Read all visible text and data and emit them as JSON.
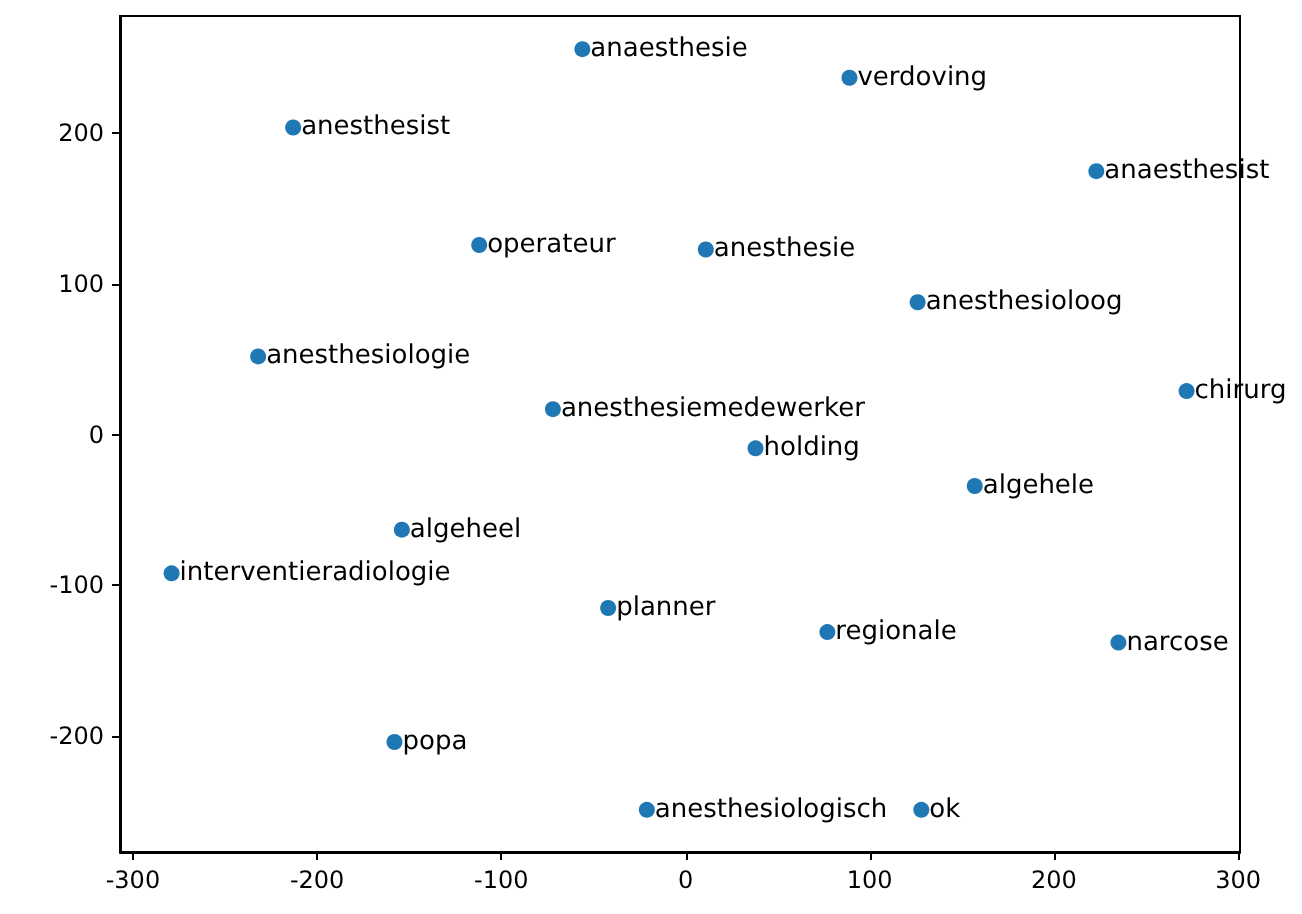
{
  "chart_data": {
    "type": "scatter",
    "marker": "circle",
    "grid": false,
    "x": [
      -56,
      89,
      -213,
      223,
      -112,
      11,
      126,
      -232,
      -72,
      272,
      38,
      157,
      -154,
      -279,
      -42,
      77,
      235,
      -158,
      -21,
      128
    ],
    "values": [
      256,
      237,
      204,
      175,
      126,
      123,
      88,
      52,
      17,
      29,
      -9,
      -34,
      -63,
      -92,
      -115,
      -131,
      -138,
      -204,
      -249,
      -249
    ],
    "value_labels": [
      "anaesthesie",
      "verdoving",
      "anesthesist",
      "anaesthesist",
      "operateur",
      "anesthesie",
      "anesthesioloog",
      "anesthesiologie",
      "anesthesiemedewerker",
      "chirurg",
      "holding",
      "algehele",
      "algeheel",
      "interventieradiologie",
      "planner",
      "regionale",
      "narcose",
      "popa",
      "anesthesiologisch",
      "ok"
    ],
    "color": "#1f77b4",
    "xlim": [
      -307,
      301
    ],
    "xticks": [
      -300,
      -200,
      -100,
      0,
      100,
      200,
      300
    ],
    "ylim": [
      -277,
      278
    ],
    "yticks": [
      -200,
      -100,
      0,
      100,
      200
    ]
  }
}
